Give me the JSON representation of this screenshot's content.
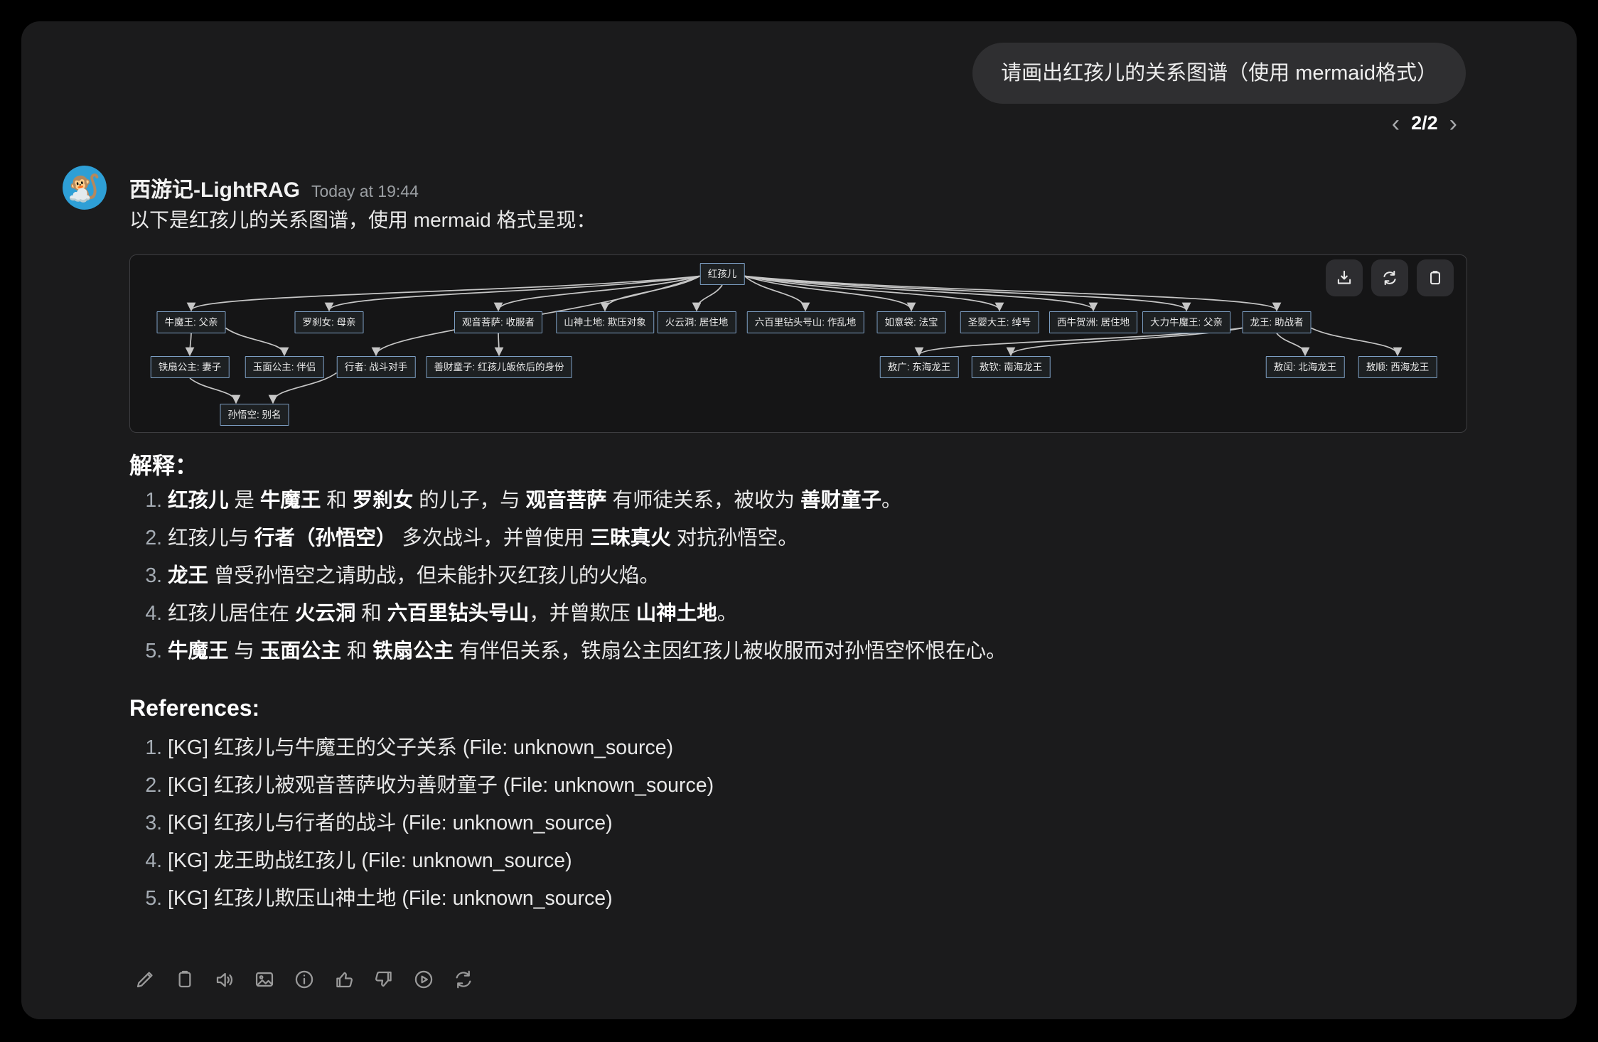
{
  "user_message": {
    "text": "请画出红孩儿的关系图谱（使用 mermaid格式）"
  },
  "pagination": {
    "current": "2/2",
    "prev_icon": "chevron-left",
    "next_icon": "chevron-right"
  },
  "assistant": {
    "name": "西游记-LightRAG",
    "timestamp": "Today at 19:44",
    "intro": "以下是红孩儿的关系图谱，使用 mermaid 格式呈现：",
    "avatar": "monkey-king-avatar"
  },
  "diagram": {
    "action_icons": [
      "download-icon",
      "sync-icon",
      "clipboard-icon"
    ],
    "nodes": [
      {
        "id": "root",
        "label": "红孩儿"
      },
      {
        "id": "niumowang",
        "label": "牛魔王: 父亲"
      },
      {
        "id": "luochanu",
        "label": "罗刹女: 母亲"
      },
      {
        "id": "guanyin",
        "label": "观音菩萨: 收服者"
      },
      {
        "id": "shanshen",
        "label": "山神土地: 欺压对象"
      },
      {
        "id": "huoyundong",
        "label": "火云洞: 居住地"
      },
      {
        "id": "liubaili",
        "label": "六百里钻头号山: 作乱地"
      },
      {
        "id": "ruyidai",
        "label": "如意袋: 法宝"
      },
      {
        "id": "shengying",
        "label": "圣婴大王: 绰号"
      },
      {
        "id": "xiniu",
        "label": "西牛贺洲: 居住地"
      },
      {
        "id": "dali",
        "label": "大力牛魔王: 父亲"
      },
      {
        "id": "longwang",
        "label": "龙王: 助战者"
      },
      {
        "id": "tieshan",
        "label": "铁扇公主: 妻子"
      },
      {
        "id": "yumian",
        "label": "玉面公主: 伴侣"
      },
      {
        "id": "xingzhe",
        "label": "行者: 战斗对手"
      },
      {
        "id": "shancai",
        "label": "善财童子: 红孩儿皈依后的身份"
      },
      {
        "id": "aoguang",
        "label": "敖广: 东海龙王"
      },
      {
        "id": "aoqin",
        "label": "敖钦: 南海龙王"
      },
      {
        "id": "aorun",
        "label": "敖闰: 北海龙王"
      },
      {
        "id": "aoshun",
        "label": "敖顺: 西海龙王"
      },
      {
        "id": "sunwukong",
        "label": "孙悟空: 别名"
      }
    ],
    "edges": [
      [
        "root",
        "niumowang"
      ],
      [
        "root",
        "luochanu"
      ],
      [
        "root",
        "xingzhe"
      ],
      [
        "root",
        "guanyin"
      ],
      [
        "root",
        "shanshen"
      ],
      [
        "root",
        "huoyundong"
      ],
      [
        "root",
        "liubaili"
      ],
      [
        "root",
        "ruyidai"
      ],
      [
        "root",
        "shengying"
      ],
      [
        "root",
        "xiniu"
      ],
      [
        "root",
        "dali"
      ],
      [
        "root",
        "longwang"
      ],
      [
        "niumowang",
        "tieshan"
      ],
      [
        "niumowang",
        "yumian"
      ],
      [
        "guanyin",
        "shancai"
      ],
      [
        "tieshan",
        "sunwukong"
      ],
      [
        "xingzhe",
        "sunwukong"
      ],
      [
        "longwang",
        "aoguang"
      ],
      [
        "longwang",
        "aoqin"
      ],
      [
        "longwang",
        "aorun"
      ],
      [
        "longwang",
        "aoshun"
      ]
    ]
  },
  "explanation": {
    "heading": "解释：",
    "items": [
      [
        [
          1,
          "红孩儿"
        ],
        [
          0,
          " 是 "
        ],
        [
          1,
          "牛魔王"
        ],
        [
          0,
          " 和 "
        ],
        [
          1,
          "罗刹女"
        ],
        [
          0,
          " 的儿子，与 "
        ],
        [
          1,
          "观音菩萨"
        ],
        [
          0,
          " 有师徒关系，被收为 "
        ],
        [
          1,
          "善财童子"
        ],
        [
          0,
          "。"
        ]
      ],
      [
        [
          0,
          "红孩儿与 "
        ],
        [
          1,
          "行者（孙悟空）"
        ],
        [
          0,
          " 多次战斗，并曾使用 "
        ],
        [
          1,
          "三昧真火"
        ],
        [
          0,
          " 对抗孙悟空。"
        ]
      ],
      [
        [
          1,
          "龙王"
        ],
        [
          0,
          " 曾受孙悟空之请助战，但未能扑灭红孩儿的火焰。"
        ]
      ],
      [
        [
          0,
          "红孩儿居住在 "
        ],
        [
          1,
          "火云洞"
        ],
        [
          0,
          " 和 "
        ],
        [
          1,
          "六百里钻头号山"
        ],
        [
          0,
          "，并曾欺压 "
        ],
        [
          1,
          "山神土地"
        ],
        [
          0,
          "。"
        ]
      ],
      [
        [
          1,
          "牛魔王"
        ],
        [
          0,
          " 与 "
        ],
        [
          1,
          "玉面公主"
        ],
        [
          0,
          " 和 "
        ],
        [
          1,
          "铁扇公主"
        ],
        [
          0,
          " 有伴侣关系，铁扇公主因红孩儿被收服而对孙悟空怀恨在心。"
        ]
      ]
    ]
  },
  "references": {
    "heading": "References:",
    "items": [
      "[KG] 红孩儿与牛魔王的父子关系 (File: unknown_source)",
      "[KG] 红孩儿被观音菩萨收为善财童子 (File: unknown_source)",
      "[KG] 红孩儿与行者的战斗 (File: unknown_source)",
      "[KG] 龙王助战红孩儿 (File: unknown_source)",
      "[KG] 红孩儿欺压山神土地 (File: unknown_source)"
    ]
  },
  "toolbar": {
    "icons": [
      "edit-icon",
      "copy-icon",
      "speaker-icon",
      "image-icon",
      "info-icon",
      "thumbs-up-icon",
      "thumbs-down-icon",
      "play-circle-icon",
      "regenerate-icon"
    ]
  },
  "colors": {
    "page_bg": "#000000",
    "panel_bg": "#1b1b1c",
    "bubble_bg": "#2f2f31",
    "node_fill": "#1d2022",
    "node_border": "#7d9fc4",
    "edge": "#c6c6c6",
    "avatar_bg": "#2e9fd6",
    "muted_text": "#9b9fa3"
  }
}
